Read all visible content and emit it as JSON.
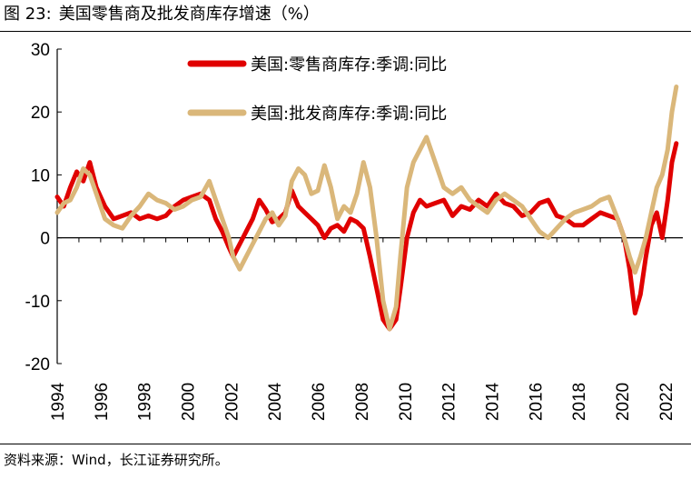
{
  "figure": {
    "number_label": "图 23:",
    "title_text": "美国零售商及批发商库存增速（%）",
    "source": "资料来源：Wind，长江证券研究所。"
  },
  "chart_data": {
    "type": "line",
    "title": "美国零售商及批发商库存增速（%）",
    "xlabel": "",
    "ylabel": "",
    "xlim": [
      1994,
      2022.8
    ],
    "ylim": [
      -20,
      30
    ],
    "yticks": [
      -20,
      -10,
      0,
      10,
      20,
      30
    ],
    "xticks": [
      1994,
      1996,
      1998,
      2000,
      2002,
      2004,
      2006,
      2008,
      2010,
      2012,
      2014,
      2016,
      2018,
      2020,
      2022
    ],
    "legend_position": "top-center",
    "series": [
      {
        "name": "美国:零售商库存:季调:同比",
        "color": "#e00000",
        "x": [
          1994.0,
          1994.3,
          1994.6,
          1994.9,
          1995.2,
          1995.5,
          1995.8,
          1996.2,
          1996.6,
          1997.0,
          1997.4,
          1997.8,
          1998.2,
          1998.6,
          1999.0,
          1999.4,
          1999.8,
          2000.2,
          2000.6,
          2001.0,
          2001.3,
          2001.6,
          2001.9,
          2002.1,
          2002.4,
          2002.7,
          2003.0,
          2003.3,
          2003.6,
          2003.9,
          2004.2,
          2004.5,
          2004.8,
          2005.1,
          2005.4,
          2005.7,
          2006.0,
          2006.3,
          2006.6,
          2006.9,
          2007.2,
          2007.5,
          2007.8,
          2008.1,
          2008.4,
          2008.7,
          2009.0,
          2009.3,
          2009.6,
          2009.8,
          2010.1,
          2010.4,
          2010.7,
          2011.0,
          2011.4,
          2011.8,
          2012.2,
          2012.6,
          2013.0,
          2013.4,
          2013.8,
          2014.2,
          2014.6,
          2015.0,
          2015.4,
          2015.8,
          2016.2,
          2016.6,
          2017.0,
          2017.4,
          2017.8,
          2018.2,
          2018.6,
          2019.0,
          2019.4,
          2019.8,
          2020.1,
          2020.35,
          2020.6,
          2020.85,
          2021.1,
          2021.35,
          2021.6,
          2021.85,
          2022.1,
          2022.3,
          2022.5
        ],
        "values": [
          6.5,
          5.0,
          8.0,
          10.5,
          9.0,
          12.0,
          8.0,
          5.0,
          3.0,
          3.5,
          4.0,
          3.0,
          3.5,
          3.0,
          3.5,
          5.0,
          6.0,
          6.5,
          7.0,
          6.0,
          3.0,
          1.0,
          -1.5,
          -3.0,
          -1.0,
          1.0,
          3.0,
          6.0,
          4.5,
          2.5,
          3.0,
          4.0,
          7.5,
          5.0,
          4.0,
          3.0,
          2.0,
          0.0,
          1.5,
          2.0,
          1.0,
          3.0,
          2.5,
          1.5,
          -3.0,
          -8.0,
          -13.0,
          -14.5,
          -13.0,
          -8.0,
          0.0,
          4.0,
          6.0,
          5.0,
          5.5,
          6.0,
          3.5,
          5.0,
          4.5,
          6.0,
          5.0,
          7.0,
          5.5,
          5.0,
          3.5,
          4.0,
          5.5,
          6.0,
          3.5,
          3.0,
          2.0,
          2.0,
          3.0,
          4.0,
          3.5,
          3.0,
          0.0,
          -5.0,
          -12.0,
          -9.0,
          -3.0,
          2.0,
          4.0,
          0.0,
          6.0,
          12.0,
          15.0
        ]
      },
      {
        "name": "美国:批发商库存:季调:同比",
        "color": "#dab77a",
        "x": [
          1994.0,
          1994.3,
          1994.6,
          1994.9,
          1995.2,
          1995.5,
          1995.8,
          1996.2,
          1996.6,
          1997.0,
          1997.4,
          1997.8,
          1998.2,
          1998.6,
          1999.0,
          1999.4,
          1999.8,
          2000.2,
          2000.6,
          2001.0,
          2001.3,
          2001.6,
          2001.9,
          2002.1,
          2002.4,
          2002.7,
          2003.0,
          2003.3,
          2003.6,
          2003.9,
          2004.2,
          2004.5,
          2004.8,
          2005.1,
          2005.4,
          2005.7,
          2006.0,
          2006.3,
          2006.6,
          2006.9,
          2007.2,
          2007.5,
          2007.8,
          2008.1,
          2008.4,
          2008.7,
          2009.0,
          2009.3,
          2009.6,
          2009.8,
          2010.1,
          2010.4,
          2010.7,
          2011.0,
          2011.4,
          2011.8,
          2012.2,
          2012.6,
          2013.0,
          2013.4,
          2013.8,
          2014.2,
          2014.6,
          2015.0,
          2015.4,
          2015.8,
          2016.2,
          2016.6,
          2017.0,
          2017.4,
          2017.8,
          2018.2,
          2018.6,
          2019.0,
          2019.4,
          2019.8,
          2020.1,
          2020.35,
          2020.6,
          2020.85,
          2021.1,
          2021.35,
          2021.6,
          2021.85,
          2022.1,
          2022.3,
          2022.5
        ],
        "values": [
          4.0,
          5.5,
          6.0,
          8.0,
          11.0,
          10.0,
          7.0,
          3.0,
          2.0,
          1.5,
          3.5,
          5.0,
          7.0,
          6.0,
          5.5,
          4.5,
          5.0,
          6.0,
          6.5,
          9.0,
          6.0,
          3.0,
          0.0,
          -3.0,
          -5.0,
          -3.0,
          -1.0,
          1.0,
          3.0,
          4.0,
          2.0,
          3.5,
          9.0,
          11.0,
          10.0,
          7.0,
          7.5,
          11.5,
          8.0,
          3.0,
          5.0,
          4.0,
          7.0,
          12.0,
          8.0,
          0.0,
          -10.0,
          -14.5,
          -11.0,
          -3.0,
          8.0,
          12.0,
          14.0,
          16.0,
          12.0,
          8.0,
          7.0,
          8.0,
          6.0,
          5.0,
          4.0,
          6.0,
          7.0,
          6.0,
          5.0,
          3.0,
          1.0,
          0.0,
          1.5,
          3.0,
          4.0,
          4.5,
          5.0,
          6.0,
          6.5,
          3.0,
          0.0,
          -3.0,
          -5.5,
          -3.0,
          0.0,
          4.0,
          8.0,
          10.0,
          14.0,
          20.0,
          24.0
        ]
      }
    ]
  }
}
